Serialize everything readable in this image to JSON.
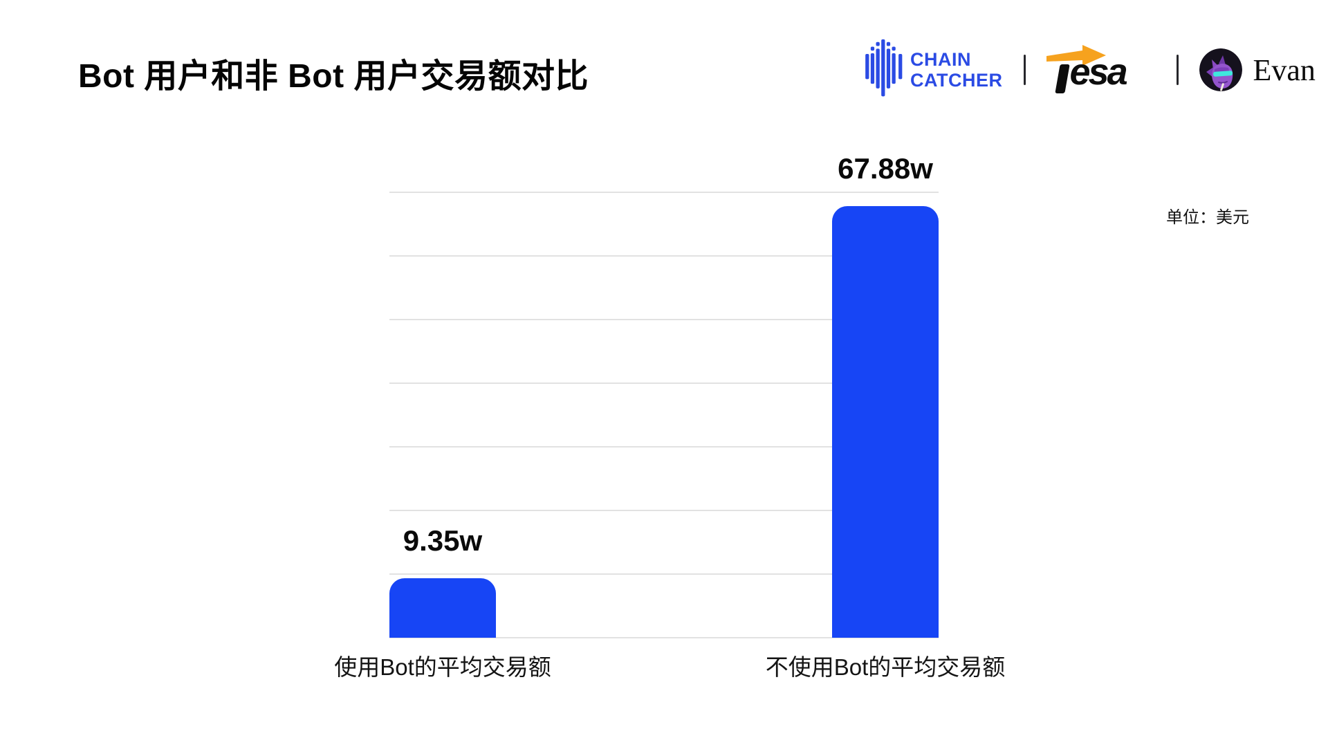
{
  "header": {
    "title": "Bot 用户和非 Bot 用户交易额对比",
    "brand_bar": {
      "chaincatcher": {
        "label_line1": "CHAIN",
        "label_line2": "CATCHER",
        "brand_color": "#2B4BE4"
      },
      "tesa": {
        "label": "esa",
        "arrow_color": "#F6A21E",
        "text_color": "#0D0D0D"
      },
      "author": {
        "name": "Evan"
      }
    }
  },
  "chart_data": {
    "type": "bar",
    "title": "Bot 用户和非 Bot 用户交易额对比",
    "unit_note": "单位：美元",
    "categories": [
      "使用Bot的平均交易额",
      "不使用Bot的平均交易额"
    ],
    "values": [
      9.35,
      67.88
    ],
    "value_labels": [
      "9.35w",
      "67.88w"
    ],
    "bar_color": "#1745F5",
    "gridline_color": "#e2e2e2",
    "ylim": [
      0,
      70
    ],
    "grid_step": 10,
    "grid": "on",
    "legend": "none",
    "xlabel": "",
    "ylabel": ""
  }
}
